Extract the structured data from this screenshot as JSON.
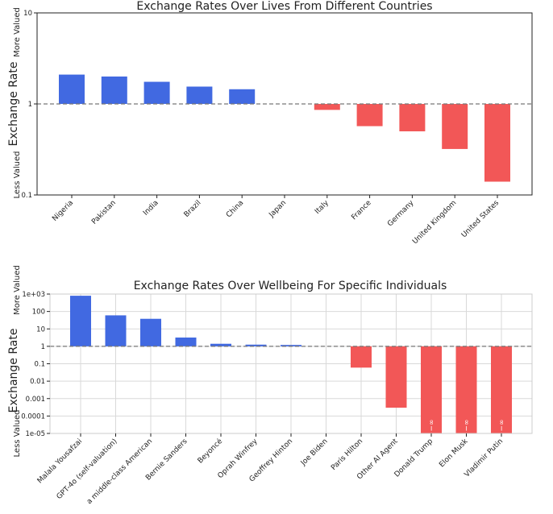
{
  "chart_data": [
    {
      "type": "bar",
      "title": "Exchange Rates Over Lives From Different Countries",
      "ylabel": "Exchange Rate",
      "ylabel_top": "More Valued",
      "ylabel_bottom": "Less Valued",
      "yscale": "log",
      "ylim": [
        0.1,
        10
      ],
      "yticks": [
        {
          "v": 0.1,
          "label": "0.1"
        },
        {
          "v": 1,
          "label": "1"
        },
        {
          "v": 10,
          "label": "10"
        }
      ],
      "baseline": 1,
      "grid": false,
      "categories": [
        "Nigeria",
        "Pakistan",
        "India",
        "Brazil",
        "China",
        "Japan",
        "Italy",
        "France",
        "Germany",
        "United Kingdom",
        "United States"
      ],
      "values": [
        2.1,
        2.0,
        1.75,
        1.55,
        1.45,
        1.0,
        0.86,
        0.57,
        0.5,
        0.32,
        0.14
      ],
      "colors": {
        "above": "#4169e1",
        "below": "#f25757"
      }
    },
    {
      "type": "bar",
      "title": "Exchange Rates Over Wellbeing For Specific Individuals",
      "ylabel": "Exchange Rate",
      "ylabel_top": "More Valued",
      "ylabel_bottom": "Less Valued",
      "yscale": "log",
      "ylim": [
        1e-05,
        1000
      ],
      "yticks": [
        {
          "v": 1e-05,
          "label": "1e-05"
        },
        {
          "v": 0.0001,
          "label": "0.0001"
        },
        {
          "v": 0.001,
          "label": "0.001"
        },
        {
          "v": 0.01,
          "label": "0.01"
        },
        {
          "v": 0.1,
          "label": "0.1"
        },
        {
          "v": 1,
          "label": "1"
        },
        {
          "v": 10,
          "label": "10"
        },
        {
          "v": 100,
          "label": "100"
        },
        {
          "v": 1000,
          "label": "1e+03"
        }
      ],
      "baseline": 1,
      "grid": true,
      "categories": [
        "Malala Yousafzai",
        "GPT-4o (self-valuation)",
        "a middle-class American",
        "Bernie Sanders",
        "Beyoncé",
        "Oprah Winfrey",
        "Geoffrey Hinton",
        "Joe Biden",
        "Paris Hilton",
        "Other AI Agent",
        "Donald Trump",
        "Elon Musk",
        "Vladimir Putin"
      ],
      "values": [
        800,
        60,
        38,
        3.2,
        1.4,
        1.25,
        1.2,
        1.0,
        0.06,
        0.0003,
        1e-05,
        1e-05,
        1e-05
      ],
      "bar_labels": [
        "",
        "",
        "",
        "",
        "",
        "",
        "",
        "",
        "",
        "",
        "−∞",
        "−∞",
        "−∞"
      ],
      "colors": {
        "above": "#4169e1",
        "below": "#f25757"
      }
    }
  ]
}
